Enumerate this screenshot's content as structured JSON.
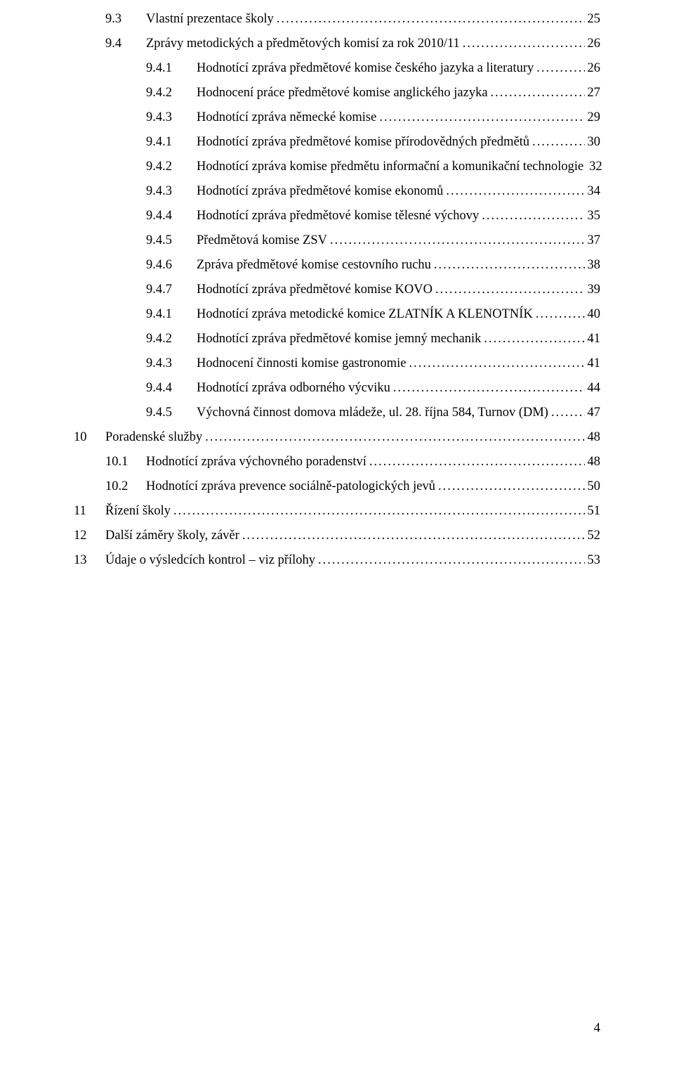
{
  "typography": {
    "font_family": "Times New Roman",
    "font_size_pt": 14,
    "text_color": "#000000",
    "background_color": "#ffffff",
    "leader_char": "."
  },
  "page_number": "4",
  "toc": [
    {
      "level": 2,
      "num": "9.3",
      "title": "Vlastní prezentace školy",
      "page": "25"
    },
    {
      "level": 2,
      "num": "9.4",
      "title": "Zprávy metodických a předmětových komisí za rok 2010/11",
      "page": "26"
    },
    {
      "level": 3,
      "num": "9.4.1",
      "title": "Hodnotící zpráva předmětové komise českého jazyka a literatury",
      "page": "26"
    },
    {
      "level": 3,
      "num": "9.4.2",
      "title": "Hodnocení práce předmětové komise anglického jazyka",
      "page": "27"
    },
    {
      "level": 3,
      "num": "9.4.3",
      "title": "Hodnotící zpráva německé komise",
      "page": "29"
    },
    {
      "level": 3,
      "num": "9.4.1",
      "title": "Hodnotící zpráva předmětové komise přírodovědných předmětů",
      "page": "30"
    },
    {
      "level": 3,
      "num": "9.4.2",
      "title": "Hodnotící zpráva komise předmětu informační a komunikační technologie",
      "page": "32"
    },
    {
      "level": 3,
      "num": "9.4.3",
      "title": "Hodnotící zpráva předmětové komise ekonomů",
      "page": "34"
    },
    {
      "level": 3,
      "num": "9.4.4",
      "title": "Hodnotící zpráva předmětové komise tělesné výchovy",
      "page": "35"
    },
    {
      "level": 3,
      "num": "9.4.5",
      "title": "Předmětová komise ZSV",
      "page": "37"
    },
    {
      "level": 3,
      "num": "9.4.6",
      "title": "Zpráva předmětové komise cestovního ruchu",
      "page": "38"
    },
    {
      "level": 3,
      "num": "9.4.7",
      "title": "Hodnotící zpráva předmětové komise KOVO",
      "page": "39"
    },
    {
      "level": 3,
      "num": "9.4.1",
      "title": "Hodnotící zpráva metodické komice ZLATNÍK A KLENOTNÍK",
      "page": "40"
    },
    {
      "level": 3,
      "num": "9.4.2",
      "title": "Hodnotící zpráva předmětové komise jemný mechanik",
      "page": "41"
    },
    {
      "level": 3,
      "num": "9.4.3",
      "title": "Hodnocení činnosti komise gastronomie",
      "page": "41"
    },
    {
      "level": 3,
      "num": "9.4.4",
      "title": "Hodnotící zpráva odborného výcviku",
      "page": "44"
    },
    {
      "level": 3,
      "num": "9.4.5",
      "title": "Výchovná činnost domova mládeže, ul. 28. října 584, Turnov (DM)",
      "page": "47"
    },
    {
      "level": 1,
      "num": "10",
      "title": "Poradenské služby",
      "page": "48"
    },
    {
      "level": 2,
      "num": "10.1",
      "title": "Hodnotící zpráva výchovného poradenství",
      "page": "48"
    },
    {
      "level": 2,
      "num": "10.2",
      "title": "Hodnotící zpráva prevence sociálně-patologických jevů",
      "page": "50"
    },
    {
      "level": 1,
      "num": "11",
      "title": "Řízení školy",
      "page": "51"
    },
    {
      "level": 1,
      "num": "12",
      "title": "Další záměry školy, závěr",
      "page": "52"
    },
    {
      "level": 1,
      "num": "13",
      "title": "Údaje o výsledcích kontrol – viz přílohy",
      "page": "53"
    }
  ]
}
